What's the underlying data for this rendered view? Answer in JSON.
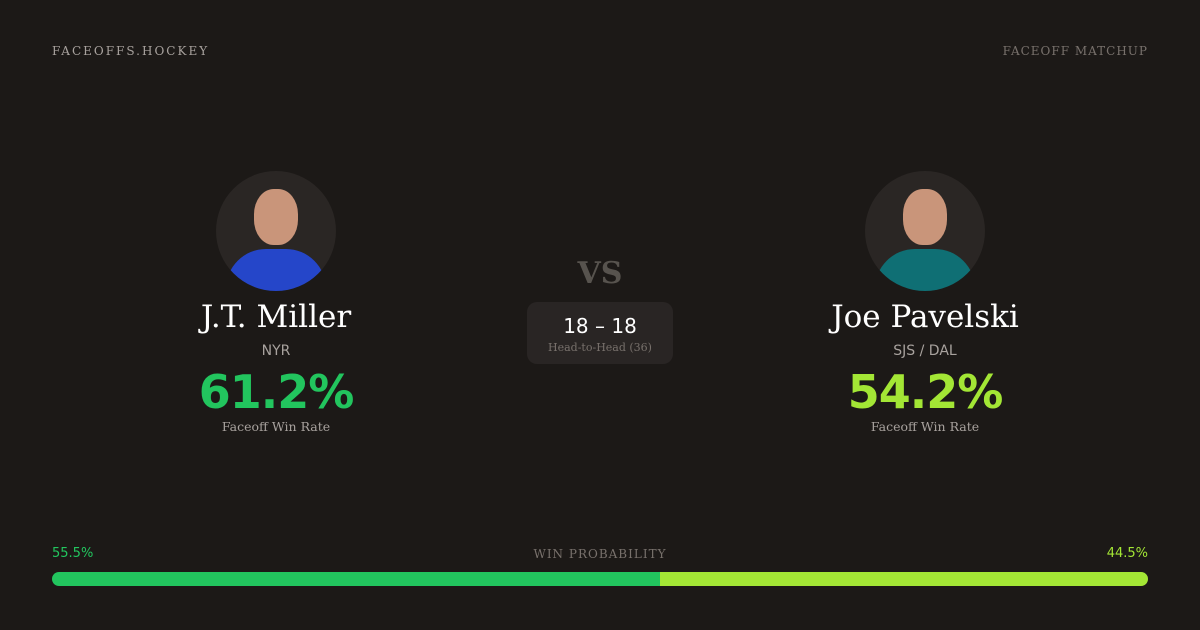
{
  "brand": "FACEOFFS.HOCKEY",
  "tag": "FACEOFF MATCHUP",
  "vs": "VS",
  "left": {
    "name": "J.T. Miller",
    "team": "NYR",
    "win_rate": "61.2%",
    "win_rate_label": "Faceoff Win Rate",
    "color": "#22c55e",
    "jersey": "#2546c9"
  },
  "right": {
    "name": "Joe Pavelski",
    "team": "SJS / DAL",
    "win_rate": "54.2%",
    "win_rate_label": "Faceoff Win Rate",
    "color": "#a3e635",
    "jersey": "#0f6f74"
  },
  "head_to_head": {
    "score": "18 – 18",
    "label": "Head-to-Head (36)"
  },
  "win_probability": {
    "label": "WIN PROBABILITY",
    "left": "55.5%",
    "right": "44.5%",
    "left_value": 55.5,
    "right_value": 44.5
  }
}
